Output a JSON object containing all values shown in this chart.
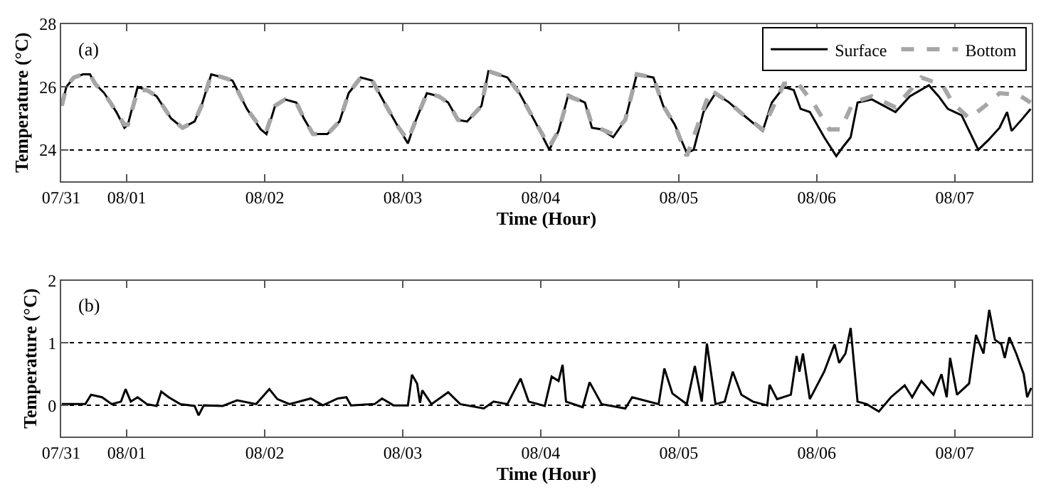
{
  "chart_data": [
    {
      "type": "line",
      "xlabel": "Time (Hour)",
      "ylabel": "Temperature (°C)",
      "annotations": [
        "(a)"
      ],
      "xlim": [
        "--07-31T12:36",
        "--08-07T13:24"
      ],
      "ylim": [
        23,
        28
      ],
      "yticks": [
        24,
        26,
        28
      ],
      "xticks": [
        {
          "value": "--07-31T12:36",
          "label": "07/31"
        },
        {
          "value": "--08-01",
          "label": "08/01"
        },
        {
          "value": "--08-02",
          "label": "08/02"
        },
        {
          "value": "--08-03",
          "label": "08/03"
        },
        {
          "value": "--08-04",
          "label": "08/04"
        },
        {
          "value": "--08-05",
          "label": "08/05"
        },
        {
          "value": "--08-06",
          "label": "08/06"
        },
        {
          "value": "--08-07",
          "label": "08/07"
        }
      ],
      "grid": "y",
      "legend": "top right",
      "series": [
        {
          "name": "Surface",
          "color": "#000000",
          "line_style": "solid",
          "x": [
            "--07-31T12:42",
            "--07-31T13:30",
            "--07-31T14:48",
            "--07-31T16:24",
            "--07-31T17:36",
            "--07-31T18:30",
            "--07-31T20:06",
            "--07-31T22:12",
            "--07-31T23:36",
            "--08-01T00:12",
            "--08-01T01:54",
            "--08-01T03:30",
            "--08-01T05:12",
            "--08-01T07:42",
            "--08-01T09:42",
            "--08-01T11:48",
            "--08-01T13:00",
            "--08-01T14:42",
            "--08-01T16:42",
            "--08-01T18:24",
            "--08-01T20:54",
            "--08-01T23:18",
            "--08-02T00:18",
            "--08-02T01:48",
            "--08-02T03:30",
            "--08-02T05:30",
            "--08-02T06:48",
            "--08-02T08:24",
            "--08-02T10:54",
            "--08-02T13:00",
            "--08-02T14:36",
            "--08-02T16:42",
            "--08-02T18:42",
            "--08-02T20:48",
            "--08-02T23:18",
            "--08-03T00:54",
            "--08-03T02:12",
            "--08-03T04:12",
            "--08-03T06:18",
            "--08-03T07:54",
            "--08-03T09:36",
            "--08-03T11:12",
            "--08-03T13:42",
            "--08-03T14:54",
            "--08-03T18:12",
            "--08-03T20:18",
            "--08-03T23:00",
            "--08-04T01:30",
            "--08-04T03:06",
            "--08-04T04:48",
            "--08-04T07:42",
            "--08-04T08:54",
            "--08-04T10:36",
            "--08-04T12:36",
            "--08-04T14:42",
            "--08-04T16:42",
            "--08-04T19:36",
            "--08-04T21:18",
            "--08-04T23:18",
            "--08-05T01:24",
            "--08-05T02:36",
            "--08-05T04:18",
            "--08-05T06:24",
            "--08-05T08:48",
            "--08-05T11:18",
            "--08-05T14:36",
            "--08-05T16:12",
            "--08-05T18:18",
            "--08-05T20:00",
            "--08-05T21:12",
            "--08-05T22:48",
            "--08-06T01:18",
            "--08-06T03:24",
            "--08-06T04:36",
            "--08-06T05:54",
            "--08-06T07:06",
            "--08-06T09:36",
            "--08-06T13:42",
            "--08-06T16:12",
            "--08-06T19:30",
            "--08-06T21:12",
            "--08-06T22:48",
            "--08-07T01:12",
            "--08-07T04:06",
            "--08-07T05:48",
            "--08-07T07:48",
            "--08-07T09:06",
            "--08-07T09:54",
            "--08-07T11:36",
            "--08-07T13:12"
          ],
          "values": [
            25.4,
            26.0,
            26.3,
            26.4,
            26.4,
            26.1,
            25.8,
            25.2,
            24.7,
            24.8,
            26.0,
            25.9,
            25.7,
            25.0,
            24.7,
            24.9,
            25.4,
            26.4,
            26.3,
            26.2,
            25.3,
            24.65,
            24.5,
            25.4,
            25.6,
            25.5,
            25.0,
            24.5,
            24.5,
            24.9,
            25.8,
            26.3,
            26.2,
            25.5,
            24.7,
            24.2,
            24.9,
            25.8,
            25.7,
            25.5,
            24.95,
            24.9,
            25.4,
            26.5,
            26.3,
            25.8,
            24.9,
            24.0,
            24.6,
            25.75,
            25.5,
            24.7,
            24.65,
            24.4,
            24.95,
            26.4,
            26.3,
            25.4,
            24.8,
            23.9,
            24.0,
            25.2,
            25.8,
            25.5,
            25.1,
            24.6,
            25.5,
            26.0,
            25.9,
            25.3,
            25.2,
            24.4,
            23.8,
            24.1,
            24.4,
            25.5,
            25.6,
            25.2,
            25.7,
            26.05,
            25.7,
            25.3,
            25.1,
            24.0,
            24.3,
            24.7,
            25.2,
            24.6,
            24.95,
            25.3
          ]
        },
        {
          "name": "Bottom",
          "color": "#a6a6a6",
          "line_style": "dashed",
          "x": [
            "--07-31T12:42",
            "--07-31T13:30",
            "--07-31T14:48",
            "--07-31T16:24",
            "--07-31T17:36",
            "--07-31T18:30",
            "--07-31T20:06",
            "--07-31T22:12",
            "--07-31T23:36",
            "--08-01T00:12",
            "--08-01T01:54",
            "--08-01T03:30",
            "--08-01T05:12",
            "--08-01T07:42",
            "--08-01T09:42",
            "--08-01T11:48",
            "--08-01T13:00",
            "--08-01T14:42",
            "--08-01T16:42",
            "--08-01T18:24",
            "--08-01T20:54",
            "--08-01T23:18",
            "--08-02T00:18",
            "--08-02T01:48",
            "--08-02T03:30",
            "--08-02T05:30",
            "--08-02T06:48",
            "--08-02T08:24",
            "--08-02T10:54",
            "--08-02T13:00",
            "--08-02T14:36",
            "--08-02T16:42",
            "--08-02T18:42",
            "--08-02T20:48",
            "--08-02T23:18",
            "--08-03T00:54",
            "--08-03T02:12",
            "--08-03T04:12",
            "--08-03T06:18",
            "--08-03T07:54",
            "--08-03T09:36",
            "--08-03T11:12",
            "--08-03T13:42",
            "--08-03T14:54",
            "--08-03T18:12",
            "--08-03T20:18",
            "--08-03T23:00",
            "--08-04T01:30",
            "--08-04T03:06",
            "--08-04T04:48",
            "--08-04T07:42",
            "--08-04T08:54",
            "--08-04T10:36",
            "--08-04T12:36",
            "--08-04T14:42",
            "--08-04T16:42",
            "--08-04T19:36",
            "--08-04T21:18",
            "--08-04T23:18",
            "--08-05T01:24",
            "--08-05T05:30",
            "--08-05T08:48",
            "--08-05T11:18",
            "--08-05T14:36",
            "--08-05T18:18",
            "--08-05T20:48",
            "--08-05T23:42",
            "--08-06T02:12",
            "--08-06T04:12",
            "--08-06T06:18",
            "--08-06T09:36",
            "--08-06T13:42",
            "--08-06T18:12",
            "--08-06T21:54",
            "--08-06T23:36",
            "--08-07T02:30",
            "--08-07T05:18",
            "--08-07T07:48",
            "--08-07T11:06",
            "--08-07T13:12"
          ],
          "values": [
            25.4,
            26.0,
            26.3,
            26.4,
            26.4,
            26.1,
            25.8,
            25.2,
            24.8,
            24.8,
            25.9,
            25.9,
            25.7,
            25.0,
            24.7,
            24.9,
            25.4,
            26.4,
            26.3,
            26.2,
            25.3,
            24.7,
            24.6,
            25.4,
            25.6,
            25.5,
            25.0,
            24.5,
            24.5,
            24.9,
            25.8,
            26.3,
            26.2,
            25.5,
            24.7,
            24.3,
            24.9,
            25.8,
            25.7,
            25.5,
            24.95,
            24.9,
            25.4,
            26.5,
            26.3,
            25.8,
            24.9,
            24.1,
            24.6,
            25.7,
            25.5,
            24.8,
            24.65,
            24.5,
            24.95,
            26.4,
            26.3,
            25.4,
            24.8,
            23.8,
            25.9,
            25.5,
            25.1,
            24.65,
            26.1,
            26.1,
            25.4,
            24.65,
            24.65,
            25.5,
            25.7,
            25.35,
            26.3,
            26.05,
            25.5,
            25.0,
            25.4,
            25.8,
            25.75,
            25.5
          ]
        }
      ]
    },
    {
      "type": "line",
      "xlabel": "Time (Hour)",
      "ylabel": "Temperature (°C)",
      "annotations": [
        "(b)"
      ],
      "xlim": [
        "--07-31T12:36",
        "--08-07T13:24"
      ],
      "ylim": [
        -0.5,
        2
      ],
      "yticks": [
        0,
        1,
        2
      ],
      "xticks": [
        {
          "value": "--07-31T12:36",
          "label": "07/31"
        },
        {
          "value": "--08-01",
          "label": "08/01"
        },
        {
          "value": "--08-02",
          "label": "08/02"
        },
        {
          "value": "--08-03",
          "label": "08/03"
        },
        {
          "value": "--08-04",
          "label": "08/04"
        },
        {
          "value": "--08-05",
          "label": "08/05"
        },
        {
          "value": "--08-06",
          "label": "08/06"
        },
        {
          "value": "--08-07",
          "label": "08/07"
        }
      ],
      "grid": "y",
      "series": [
        {
          "color": "#000000",
          "line_style": "solid",
          "x": [
            "--07-31T12:42",
            "--07-31T16:48",
            "--07-31T17:48",
            "--07-31T19:42",
            "--07-31T21:24",
            "--07-31T23:00",
            "--07-31T23:48",
            "--08-01T00:42",
            "--08-01T01:54",
            "--08-01T03:30",
            "--08-01T05:12",
            "--08-01T06:00",
            "--08-01T07:18",
            "--08-01T09:18",
            "--08-01T11:48",
            "--08-01T12:30",
            "--08-01T13:24",
            "--08-01T16:42",
            "--08-01T19:12",
            "--08-01T22:30",
            "--08-02T00:48",
            "--08-02T02:12",
            "--08-02T04:18",
            "--08-02T08:00",
            "--08-02T10:06",
            "--08-02T12:42",
            "--08-02T14:12",
            "--08-02T15:00",
            "--08-02T19:06",
            "--08-02T20:24",
            "--08-02T22:24",
            "--08-03T00:54",
            "--08-03T01:36",
            "--08-03T02:30",
            "--08-03T03:00",
            "--08-03T03:24",
            "--08-03T04:12",
            "--08-03T05:00",
            "--08-03T07:54",
            "--08-03T10:00",
            "--08-03T14:06",
            "--08-03T15:48",
            "--08-03T18:12",
            "--08-03T20:30",
            "--08-03T21:54",
            "--08-04T00:42",
            "--08-04T01:54",
            "--08-04T03:06",
            "--08-04T03:48",
            "--08-04T04:24",
            "--08-04T07:18",
            "--08-04T08:30",
            "--08-04T10:36",
            "--08-04T14:42",
            "--08-04T15:54",
            "--08-04T20:30",
            "--08-04T21:30",
            "--08-04T22:54",
            "--08-05T01:24",
            "--08-05T02:48",
            "--08-05T04:00",
            "--08-05T04:54",
            "--08-05T06:24",
            "--08-05T08:00",
            "--08-05T09:24",
            "--08-05T10:54",
            "--08-05T12:54",
            "--08-05T15:24",
            "--08-05T15:48",
            "--08-05T17:06",
            "--08-05T19:30",
            "--08-05T20:30",
            "--08-05T21:00",
            "--08-05T21:36",
            "--08-05T22:48",
            "--08-06T01:18",
            "--08-06T03:06",
            "--08-06T03:54",
            "--08-06T05:00",
            "--08-06T05:54",
            "--08-06T07:06",
            "--08-06T08:42",
            "--08-06T10:48",
            "--08-06T12:54",
            "--08-06T15:18",
            "--08-06T16:36",
            "--08-06T18:12",
            "--08-06T20:18",
            "--08-06T21:42",
            "--08-06T22:36",
            "--08-06T23:12",
            "--08-07T00:24",
            "--08-07T02:30",
            "--08-07T03:42",
            "--08-07T05:00",
            "--08-07T06:00",
            "--08-07T07:00",
            "--08-07T08:06",
            "--08-07T08:42",
            "--08-07T09:30",
            "--08-07T10:42",
            "--08-07T12:00",
            "--08-07T12:36",
            "--08-07T13:18"
          ],
          "values": [
            0.02,
            0.02,
            0.17,
            0.13,
            0.02,
            0.06,
            0.26,
            0.06,
            0.13,
            0.02,
            -0.01,
            0.22,
            0.13,
            0.02,
            -0.01,
            -0.16,
            0,
            -0.01,
            0.08,
            0.02,
            0.26,
            0.1,
            0.02,
            0.11,
            0,
            0.11,
            0.13,
            0,
            0.02,
            0.11,
            0,
            0,
            0.49,
            0.35,
            0.04,
            0.24,
            0.13,
            0.02,
            0.21,
            0.02,
            -0.05,
            0.06,
            0.02,
            0.43,
            0.06,
            -0.01,
            0.46,
            0.39,
            0.65,
            0.06,
            -0.03,
            0.37,
            0.02,
            -0.05,
            0.13,
            0.02,
            0.59,
            0.19,
            0.02,
            0.63,
            0.06,
            0.99,
            0.02,
            0.06,
            0.54,
            0.17,
            0.06,
            0,
            0.33,
            0.1,
            0.17,
            0.79,
            0.54,
            0.83,
            0.1,
            0.54,
            0.98,
            0.68,
            0.83,
            1.24,
            0.06,
            0.02,
            -0.1,
            0.13,
            0.32,
            0.13,
            0.39,
            0.17,
            0.5,
            0.13,
            0.76,
            0.17,
            0.35,
            1.13,
            0.83,
            1.53,
            1.05,
            0.98,
            0.76,
            1.09,
            0.83,
            0.5,
            0.13,
            0.28
          ]
        }
      ]
    }
  ]
}
